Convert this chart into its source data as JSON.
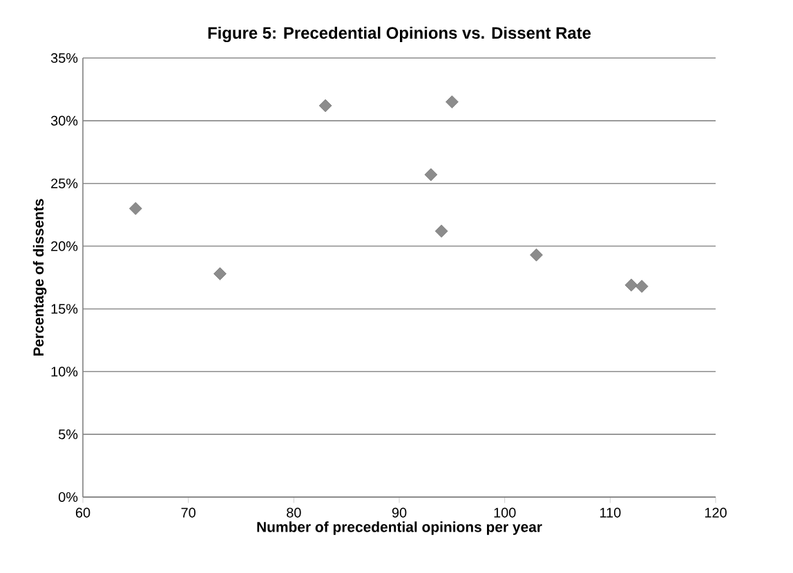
{
  "chart_data": {
    "type": "scatter",
    "title": "Figure 5: Precedential Opinions vs. Dissent Rate",
    "xlabel": "Number of precedential opinions  per year",
    "ylabel": "Percentage of dissents",
    "x": [
      65,
      73,
      83,
      93,
      94,
      95,
      103,
      112,
      113
    ],
    "values": [
      23.0,
      17.8,
      31.2,
      25.7,
      21.2,
      31.5,
      19.3,
      16.9,
      16.8
    ],
    "color": "#8c8c8c",
    "marker": "diamond",
    "xlim": [
      60,
      120
    ],
    "xticks": [
      60,
      70,
      80,
      90,
      100,
      110,
      120
    ],
    "ylim": [
      0,
      35
    ],
    "yticks": [
      {
        "value": 0,
        "label": "0%"
      },
      {
        "value": 5,
        "label": "5%"
      },
      {
        "value": 10,
        "label": "10%"
      },
      {
        "value": 15,
        "label": "15%"
      },
      {
        "value": 20,
        "label": "20%"
      },
      {
        "value": 25,
        "label": "25%"
      },
      {
        "value": 30,
        "label": "30%"
      },
      {
        "value": 35,
        "label": "35%"
      }
    ],
    "grid": "y"
  }
}
